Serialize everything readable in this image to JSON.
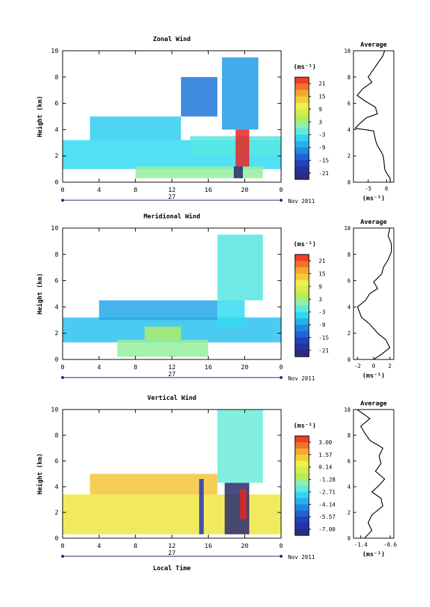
{
  "figure": {
    "x_axis_title": "Local Time",
    "date_label": "Nov 2011",
    "day_label": "27",
    "unit_label": "(ms⁻¹)",
    "y_axis_title": "Height (km)"
  },
  "chart_data": [
    {
      "type": "heatmap",
      "title": "Zonal Wind",
      "xlabel": "Local Time",
      "ylabel": "Height (km)",
      "xlim": [
        0,
        24
      ],
      "ylim": [
        0,
        10
      ],
      "x_ticks": [
        "0",
        "4",
        "8",
        "12",
        "16",
        "20",
        "0"
      ],
      "y_ticks": [
        "0",
        "2",
        "4",
        "6",
        "8",
        "10"
      ],
      "colorbar": {
        "unit": "(ms⁻¹)",
        "ticks": [
          "21",
          "15",
          "9",
          "3",
          "-3",
          "-9",
          "-15",
          "-21"
        ],
        "range": [
          -24,
          24
        ]
      },
      "fields": [
        {
          "x": [
            0,
            24
          ],
          "y": [
            1.0,
            3.2
          ],
          "value": -4
        },
        {
          "x": [
            8,
            22
          ],
          "y": [
            0.3,
            1.2
          ],
          "value": 2
        },
        {
          "x": [
            14,
            24
          ],
          "y": [
            2.0,
            3.5
          ],
          "value": -2
        },
        {
          "x": [
            17.5,
            21.5
          ],
          "y": [
            4.0,
            9.5
          ],
          "value": -9
        },
        {
          "x": [
            19,
            20.5
          ],
          "y": [
            1.2,
            4.0
          ],
          "value": 24
        },
        {
          "x": [
            18.8,
            19.8
          ],
          "y": [
            0.3,
            1.2
          ],
          "value": -24
        },
        {
          "x": [
            3,
            13
          ],
          "y": [
            3.2,
            5.0
          ],
          "value": -5
        },
        {
          "x": [
            13,
            17
          ],
          "y": [
            5.0,
            8.0
          ],
          "value": -12
        }
      ],
      "average_profile": {
        "title": "Average",
        "xlabel": "(ms⁻¹)",
        "xlim": [
          -9,
          2
        ],
        "x_ticks": [
          "-5",
          "0"
        ],
        "ylim": [
          0,
          10
        ],
        "y_ticks": [
          "0",
          "2",
          "4",
          "6",
          "8",
          "10"
        ],
        "x": [
          1,
          1,
          0,
          -0.5,
          -0.7,
          -1,
          -2.5,
          -3,
          -3.5,
          -8.5,
          -7.5,
          -5.5,
          -2.5,
          -3,
          -6,
          -8,
          -6.5,
          -4,
          -5,
          -4,
          -3,
          -2,
          -1,
          -0.5
        ],
        "y": [
          0,
          0.3,
          0.7,
          1.0,
          1.6,
          2.1,
          2.8,
          3.2,
          3.9,
          4.1,
          4.4,
          4.9,
          5.2,
          5.7,
          6.2,
          6.6,
          7.1,
          7.6,
          8.0,
          8.4,
          8.8,
          9.2,
          9.6,
          10
        ]
      }
    },
    {
      "type": "heatmap",
      "title": "Meridional Wind",
      "xlabel": "Local Time",
      "ylabel": "Height (km)",
      "xlim": [
        0,
        24
      ],
      "ylim": [
        0,
        10
      ],
      "x_ticks": [
        "0",
        "4",
        "8",
        "12",
        "16",
        "20",
        "0"
      ],
      "y_ticks": [
        "0",
        "2",
        "4",
        "6",
        "8",
        "10"
      ],
      "colorbar": {
        "unit": "(ms⁻¹)",
        "ticks": [
          "21",
          "15",
          "9",
          "3",
          "-3",
          "-9",
          "-15",
          "-21"
        ],
        "range": [
          -24,
          24
        ]
      },
      "fields": [
        {
          "x": [
            0,
            24
          ],
          "y": [
            1.3,
            3.2
          ],
          "value": -6
        },
        {
          "x": [
            6,
            16
          ],
          "y": [
            0.2,
            1.5
          ],
          "value": 2
        },
        {
          "x": [
            9,
            13
          ],
          "y": [
            1.5,
            2.5
          ],
          "value": 4
        },
        {
          "x": [
            17,
            22
          ],
          "y": [
            4.5,
            9.5
          ],
          "value": -2
        },
        {
          "x": [
            17,
            20
          ],
          "y": [
            2.5,
            4.5
          ],
          "value": -4
        },
        {
          "x": [
            4,
            17
          ],
          "y": [
            3.0,
            4.5
          ],
          "value": -8
        }
      ],
      "average_profile": {
        "title": "Average",
        "xlabel": "(ms⁻¹)",
        "xlim": [
          -2.5,
          2.5
        ],
        "x_ticks": [
          "-2",
          "0",
          "2"
        ],
        "ylim": [
          0,
          10
        ],
        "y_ticks": [
          "0",
          "2",
          "4",
          "6",
          "8",
          "10"
        ],
        "x": [
          0,
          1,
          2,
          1.5,
          0.5,
          -0.5,
          -1.5,
          -2,
          -1,
          -0.5,
          0.5,
          0,
          1,
          1.2,
          1.8,
          2.2,
          2.2,
          1.8,
          2
        ],
        "y": [
          0,
          0.4,
          0.9,
          1.5,
          2.0,
          2.7,
          3.2,
          4.0,
          4.5,
          5.0,
          5.4,
          5.9,
          6.5,
          7.0,
          7.6,
          8.2,
          8.8,
          9.4,
          10
        ]
      }
    },
    {
      "type": "heatmap",
      "title": "Vertical Wind",
      "xlabel": "Local Time",
      "ylabel": "Height (km)",
      "xlim": [
        0,
        24
      ],
      "ylim": [
        0,
        10
      ],
      "x_ticks": [
        "0",
        "4",
        "8",
        "12",
        "16",
        "20",
        "0"
      ],
      "y_ticks": [
        "0",
        "2",
        "4",
        "6",
        "8",
        "10"
      ],
      "colorbar": {
        "unit": "(ms⁻¹)",
        "ticks": [
          "3.00",
          "1.57",
          "0.14",
          "-1.28",
          "-2.71",
          "-4.14",
          "-5.57",
          "-7.00"
        ],
        "range": [
          -7.5,
          3.5
        ]
      },
      "fields": [
        {
          "x": [
            0,
            24
          ],
          "y": [
            0.3,
            3.4
          ],
          "value": 0.6
        },
        {
          "x": [
            3,
            17
          ],
          "y": [
            3.4,
            5.0
          ],
          "value": 1.2
        },
        {
          "x": [
            17,
            22
          ],
          "y": [
            4.3,
            10.0
          ],
          "value": -2.2
        },
        {
          "x": [
            17.8,
            20.5
          ],
          "y": [
            0.3,
            4.3
          ],
          "value": -7.5
        },
        {
          "x": [
            15,
            15.5
          ],
          "y": [
            0.3,
            4.6
          ],
          "value": -6.0
        },
        {
          "x": [
            19.5,
            20.2
          ],
          "y": [
            1.5,
            3.8
          ],
          "value": 3.5
        }
      ],
      "average_profile": {
        "title": "Average",
        "xlabel": "(ms⁻¹)",
        "xlim": [
          -1.6,
          -0.5
        ],
        "x_ticks": [
          "-1.4",
          "-0.6"
        ],
        "ylim": [
          0,
          10
        ],
        "y_ticks": [
          "0",
          "2",
          "4",
          "6",
          "8",
          "10"
        ],
        "x": [
          -1.3,
          -1.1,
          -1.2,
          -1.1,
          -0.8,
          -0.85,
          -1.1,
          -0.9,
          -0.75,
          -1.0,
          -0.85,
          -0.9,
          -0.8,
          -1.15,
          -1.3,
          -1.4,
          -1.15,
          -1.5
        ],
        "y": [
          0,
          0.6,
          1.2,
          1.8,
          2.5,
          3.1,
          3.6,
          4.1,
          4.6,
          5.2,
          5.8,
          6.4,
          7.0,
          7.6,
          8.2,
          8.7,
          9.3,
          10
        ]
      }
    }
  ]
}
